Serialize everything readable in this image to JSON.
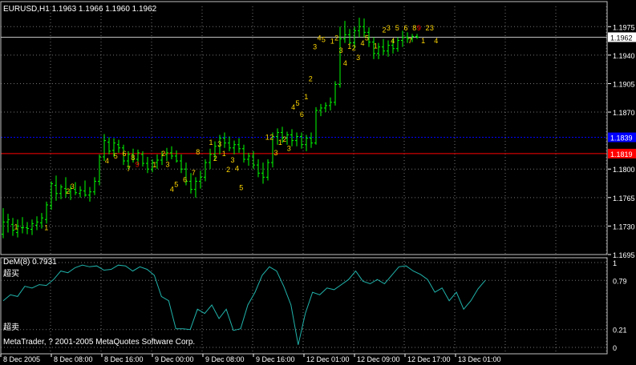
{
  "header": {
    "symbol_line": "EURUSD,H1  1.1963 1.1966 1.1960 1.1962"
  },
  "price_axis": {
    "ticks": [
      "1.1975",
      "1.1940",
      "1.1905",
      "1.1870",
      "1.1800",
      "1.1765",
      "1.1730",
      "1.1695"
    ],
    "current_price": "1.1962",
    "blue_level": "1.1839",
    "red_level": "1.1819"
  },
  "time_axis": {
    "ticks": [
      "8 Dec 2005",
      "8 Dec 08:00",
      "8 Dec 16:00",
      "9 Dec 00:00",
      "9 Dec 08:00",
      "9 Dec 16:00",
      "12 Dec 01:00",
      "12 Dec 09:00",
      "12 Dec 17:00",
      "13 Dec 01:00"
    ]
  },
  "indicator": {
    "title": "DeM(8) 0.7931",
    "overbought_label": "超买",
    "oversold_label": "超卖",
    "copyright": "MetaTrader, ? 2001-2005 MetaQuotes Software Corp.",
    "ticks": [
      "1",
      "0.79",
      "0.21",
      "0"
    ]
  },
  "colors": {
    "background": "#000000",
    "grid": "#c0c0c0",
    "bars": "#00ff00",
    "indicator_line": "#20b2aa",
    "td_count": "#ffd700",
    "td_nine": "#ff0000",
    "blue_line": "#0000ff",
    "red_line": "#ff0000"
  },
  "chart_data": [
    {
      "type": "ohlc",
      "symbol": "EURUSD",
      "timeframe": "H1",
      "ohlc_last": {
        "open": 1.1963,
        "high": 1.1966,
        "low": 1.196,
        "close": 1.1962
      },
      "ylim": [
        1.1695,
        1.199
      ],
      "y_ticks": [
        1.1975,
        1.194,
        1.1905,
        1.187,
        1.18,
        1.1765,
        1.173,
        1.1695
      ],
      "levels": [
        {
          "name": "blue",
          "value": 1.1839
        },
        {
          "name": "red",
          "value": 1.1819
        }
      ],
      "bars": [
        [
          0,
          1.172,
          1.1752,
          1.1715,
          1.1735
        ],
        [
          2,
          1.1735,
          1.1745,
          1.1722,
          1.1738
        ],
        [
          4,
          1.1732,
          1.174,
          1.1718,
          1.1725
        ],
        [
          6,
          1.1722,
          1.1738,
          1.1716,
          1.173
        ],
        [
          8,
          1.1728,
          1.1741,
          1.1721,
          1.1728
        ],
        [
          10,
          1.1728,
          1.1735,
          1.172,
          1.1727
        ],
        [
          12,
          1.1726,
          1.1738,
          1.1719,
          1.1733
        ],
        [
          14,
          1.1731,
          1.1742,
          1.1725,
          1.1735
        ],
        [
          16,
          1.1734,
          1.1746,
          1.1727,
          1.174
        ],
        [
          18,
          1.1738,
          1.176,
          1.1733,
          1.1756
        ],
        [
          20,
          1.1755,
          1.1785,
          1.175,
          1.1782
        ],
        [
          22,
          1.178,
          1.1792,
          1.1761,
          1.177
        ],
        [
          24,
          1.177,
          1.1781,
          1.1763,
          1.1778
        ],
        [
          26,
          1.1776,
          1.179,
          1.1765,
          1.1772
        ],
        [
          28,
          1.1772,
          1.178,
          1.1762,
          1.1776
        ],
        [
          30,
          1.1775,
          1.1784,
          1.1768,
          1.1771
        ],
        [
          32,
          1.177,
          1.1779,
          1.1765,
          1.1774
        ],
        [
          34,
          1.1773,
          1.1786,
          1.1766,
          1.1768
        ],
        [
          36,
          1.1768,
          1.1778,
          1.176,
          1.1772
        ],
        [
          38,
          1.1772,
          1.179,
          1.1768,
          1.1785
        ],
        [
          40,
          1.1785,
          1.1818,
          1.178,
          1.1815
        ],
        [
          42,
          1.1815,
          1.1843,
          1.181,
          1.1835
        ],
        [
          44,
          1.1833,
          1.1839,
          1.1818,
          1.1822
        ],
        [
          46,
          1.1823,
          1.1838,
          1.1815,
          1.1832
        ],
        [
          48,
          1.183,
          1.1836,
          1.182,
          1.1826
        ],
        [
          50,
          1.1826,
          1.183,
          1.1805,
          1.181
        ],
        [
          52,
          1.181,
          1.1822,
          1.18,
          1.1818
        ],
        [
          54,
          1.1818,
          1.1825,
          1.1808,
          1.1812
        ],
        [
          56,
          1.1812,
          1.1824,
          1.1805,
          1.182
        ],
        [
          58,
          1.1818,
          1.1822,
          1.1803,
          1.1807
        ],
        [
          60,
          1.1807,
          1.1815,
          1.1795,
          1.18
        ],
        [
          62,
          1.18,
          1.1812,
          1.1796,
          1.1808
        ],
        [
          64,
          1.1808,
          1.1818,
          1.18,
          1.1811
        ],
        [
          66,
          1.1811,
          1.1822,
          1.1805,
          1.1818
        ],
        [
          68,
          1.1818,
          1.1826,
          1.181,
          1.182
        ],
        [
          70,
          1.182,
          1.1828,
          1.1812,
          1.1816
        ],
        [
          72,
          1.1816,
          1.1823,
          1.1808,
          1.181
        ],
        [
          74,
          1.181,
          1.1818,
          1.1795,
          1.18
        ],
        [
          76,
          1.18,
          1.1808,
          1.178,
          1.1785
        ],
        [
          78,
          1.1785,
          1.1795,
          1.177,
          1.1775
        ],
        [
          80,
          1.1775,
          1.179,
          1.1765,
          1.1785
        ],
        [
          82,
          1.1785,
          1.1798,
          1.1776,
          1.179
        ],
        [
          84,
          1.179,
          1.1812,
          1.1785,
          1.1808
        ],
        [
          86,
          1.1808,
          1.1825,
          1.18,
          1.1818
        ],
        [
          88,
          1.1818,
          1.1834,
          1.181,
          1.1828
        ],
        [
          90,
          1.1828,
          1.1842,
          1.1818,
          1.1838
        ],
        [
          92,
          1.1838,
          1.1845,
          1.1826,
          1.1832
        ],
        [
          94,
          1.1832,
          1.184,
          1.1822,
          1.1826
        ],
        [
          96,
          1.1826,
          1.1835,
          1.1818,
          1.183
        ],
        [
          98,
          1.183,
          1.1838,
          1.182,
          1.1825
        ],
        [
          100,
          1.1825,
          1.183,
          1.1808,
          1.1812
        ],
        [
          102,
          1.1812,
          1.182,
          1.1804,
          1.1816
        ],
        [
          104,
          1.1816,
          1.1822,
          1.18,
          1.1805
        ],
        [
          106,
          1.1805,
          1.1812,
          1.179,
          1.1795
        ],
        [
          108,
          1.1795,
          1.1808,
          1.1782,
          1.179
        ],
        [
          110,
          1.179,
          1.1812,
          1.1786,
          1.1808
        ],
        [
          112,
          1.1808,
          1.1845,
          1.1802,
          1.184
        ],
        [
          114,
          1.184,
          1.185,
          1.183,
          1.1845
        ],
        [
          116,
          1.1845,
          1.1852,
          1.1832,
          1.1838
        ],
        [
          118,
          1.1838,
          1.1846,
          1.183,
          1.1842
        ],
        [
          120,
          1.1842,
          1.1849,
          1.1828,
          1.1835
        ],
        [
          122,
          1.1835,
          1.1845,
          1.1828,
          1.184
        ],
        [
          124,
          1.184,
          1.1845,
          1.1825,
          1.183
        ],
        [
          126,
          1.183,
          1.1842,
          1.1822,
          1.1838
        ],
        [
          128,
          1.1838,
          1.1845,
          1.1826,
          1.1832
        ],
        [
          130,
          1.1832,
          1.1876,
          1.183,
          1.1872
        ],
        [
          132,
          1.1872,
          1.188,
          1.1865,
          1.1875
        ],
        [
          134,
          1.1875,
          1.1882,
          1.187,
          1.1878
        ],
        [
          136,
          1.1878,
          1.1888,
          1.1872,
          1.1882
        ],
        [
          138,
          1.1882,
          1.1908,
          1.1878,
          1.1904
        ],
        [
          140,
          1.1904,
          1.1975,
          1.19,
          1.196
        ],
        [
          142,
          1.196,
          1.1982,
          1.1955,
          1.1965
        ],
        [
          144,
          1.1965,
          1.1972,
          1.195,
          1.1955
        ],
        [
          146,
          1.1955,
          1.1975,
          1.1948,
          1.197
        ],
        [
          148,
          1.197,
          1.1986,
          1.1962,
          1.1975
        ],
        [
          150,
          1.1975,
          1.1985,
          1.1962,
          1.1968
        ],
        [
          152,
          1.1968,
          1.1974,
          1.195,
          1.1956
        ],
        [
          154,
          1.1956,
          1.1962,
          1.1935,
          1.1942
        ],
        [
          156,
          1.1942,
          1.1955,
          1.1935,
          1.195
        ],
        [
          158,
          1.195,
          1.196,
          1.194,
          1.1945
        ],
        [
          160,
          1.1945,
          1.1958,
          1.1938,
          1.1952
        ],
        [
          162,
          1.1952,
          1.196,
          1.1942,
          1.1948
        ],
        [
          164,
          1.1948,
          1.1962,
          1.1944,
          1.1958
        ],
        [
          166,
          1.1958,
          1.197,
          1.195,
          1.1962
        ],
        [
          168,
          1.1962,
          1.1968,
          1.1955,
          1.196
        ],
        [
          170,
          1.196,
          1.1966,
          1.1956,
          1.1963
        ],
        [
          172,
          1.1963,
          1.1966,
          1.196,
          1.1962
        ]
      ],
      "td_counts": [
        [
          5,
          "1"
        ],
        [
          19,
          "1"
        ],
        [
          29,
          "2"
        ],
        [
          31,
          "3"
        ],
        [
          47,
          "4"
        ],
        [
          51,
          "5"
        ],
        [
          55,
          "6"
        ],
        [
          57,
          "7"
        ],
        [
          59,
          "8"
        ],
        [
          61,
          "9"
        ],
        [
          69,
          "1"
        ],
        [
          73,
          "2"
        ],
        [
          75,
          "3"
        ],
        [
          77,
          "4"
        ],
        [
          79,
          "5"
        ],
        [
          83,
          "6"
        ],
        [
          87,
          "7"
        ],
        [
          89,
          "8"
        ],
        [
          95,
          "1"
        ],
        [
          97,
          "2"
        ],
        [
          99,
          "3"
        ],
        [
          101,
          "1"
        ],
        [
          103,
          "2"
        ],
        [
          105,
          "3"
        ],
        [
          107,
          "4"
        ],
        [
          109,
          "5"
        ],
        [
          121,
          "1"
        ],
        [
          123,
          "2"
        ],
        [
          125,
          "3"
        ],
        [
          127,
          "1"
        ],
        [
          129,
          "2"
        ],
        [
          131,
          "3"
        ],
        [
          133,
          "4"
        ],
        [
          135,
          "5"
        ],
        [
          137,
          "6"
        ],
        [
          139,
          "1"
        ],
        [
          141,
          "2"
        ],
        [
          143,
          "3"
        ],
        [
          145,
          "4"
        ],
        [
          147,
          "5"
        ],
        [
          151,
          "1"
        ],
        [
          153,
          "2"
        ],
        [
          155,
          "3"
        ],
        [
          157,
          "4"
        ],
        [
          159,
          "1"
        ],
        [
          161,
          "2"
        ],
        [
          163,
          "3"
        ],
        [
          165,
          "4"
        ],
        [
          167,
          "5"
        ],
        [
          171,
          "1"
        ],
        [
          175,
          "2"
        ],
        [
          177,
          "3"
        ],
        [
          179,
          "4"
        ],
        [
          181,
          "5"
        ],
        [
          185,
          "6"
        ],
        [
          187,
          "7"
        ],
        [
          189,
          "8"
        ],
        [
          191,
          "9"
        ],
        [
          193,
          "1"
        ],
        [
          195,
          "2"
        ],
        [
          197,
          "3"
        ],
        [
          199,
          "4"
        ]
      ]
    },
    {
      "type": "line",
      "name": "DeM(8)",
      "ylim": [
        0,
        1
      ],
      "y_ticks": [
        1,
        0.79,
        0.21,
        0
      ],
      "values": [
        0.55,
        0.62,
        0.6,
        0.72,
        0.7,
        0.74,
        0.73,
        0.8,
        0.9,
        0.88,
        0.94,
        0.97,
        0.95,
        0.96,
        0.91,
        0.92,
        0.97,
        0.96,
        0.9,
        0.95,
        0.92,
        0.85,
        0.6,
        0.55,
        0.22,
        0.22,
        0.21,
        0.45,
        0.4,
        0.5,
        0.34,
        0.45,
        0.2,
        0.22,
        0.5,
        0.65,
        0.85,
        0.95,
        0.9,
        0.72,
        0.5,
        0.03,
        0.4,
        0.65,
        0.62,
        0.7,
        0.68,
        0.74,
        0.8,
        0.9,
        0.78,
        0.75,
        0.8,
        0.75,
        0.85,
        0.95,
        0.96,
        0.9,
        0.86,
        0.8,
        0.65,
        0.7,
        0.55,
        0.65,
        0.45,
        0.55,
        0.69,
        0.79
      ]
    }
  ]
}
